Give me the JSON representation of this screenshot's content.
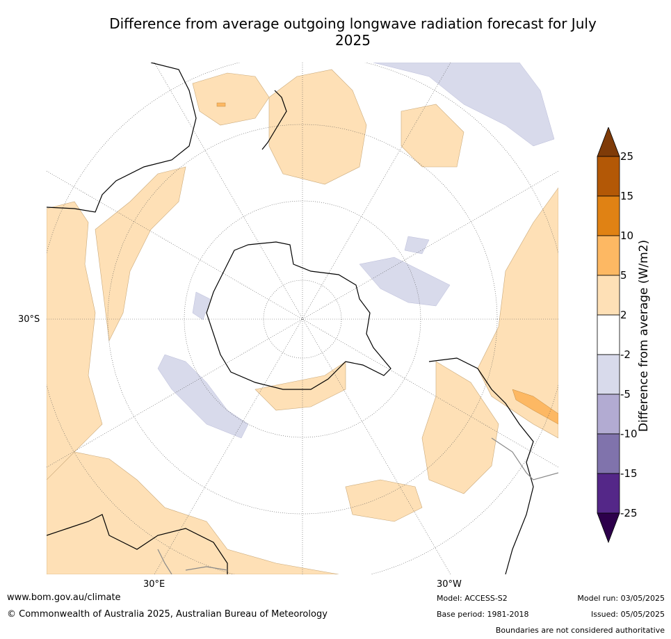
{
  "title": "Difference from average outgoing longwave radiation forecast for July 2025",
  "map_labels": {
    "lat_30s": "30°S",
    "lon_30e": "30°E",
    "lon_30w": "30°W"
  },
  "legend": {
    "title": "Difference from average (W/m2)",
    "ticks": [
      "25",
      "15",
      "10",
      "5",
      "2",
      "-2",
      "-5",
      "-10",
      "-15",
      "-25"
    ],
    "bins": [
      {
        "label": ">25",
        "color": "#7f3b08"
      },
      {
        "label": "15 to 25",
        "color": "#b35806"
      },
      {
        "label": "10 to 15",
        "color": "#e08214"
      },
      {
        "label": "5 to 10",
        "color": "#fdb863"
      },
      {
        "label": "2 to 5",
        "color": "#fee0b6"
      },
      {
        "label": "-2 to 2",
        "color": "#ffffff"
      },
      {
        "label": "-5 to -2",
        "color": "#d8daeb"
      },
      {
        "label": "-10 to -5",
        "color": "#b2abd2"
      },
      {
        "label": "-15 to -10",
        "color": "#8073ac"
      },
      {
        "label": "-25 to -15",
        "color": "#542788"
      },
      {
        "label": "<-25",
        "color": "#2d004b"
      }
    ]
  },
  "footer": {
    "website": "www.bom.gov.au/climate",
    "copyright": "© Commonwealth of Australia 2025, Australian Bureau of Meteorology",
    "model": "Model: ACCESS-S2",
    "base_period": "Base period: 1981-2018",
    "model_run": "Model run: 03/05/2025",
    "issued": "Issued: 05/05/2025",
    "disclaimer": "Boundaries are not considered authoritative"
  }
}
